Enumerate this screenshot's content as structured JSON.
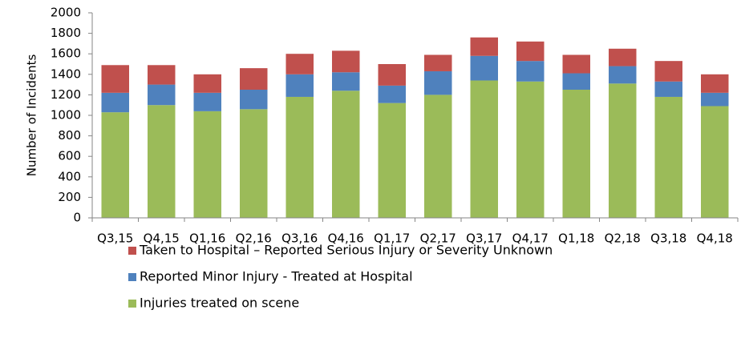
{
  "chart_data": {
    "type": "stacked_bar",
    "y_axis_label": "Number of Incidents",
    "categories": [
      "Q3,15",
      "Q4,15",
      "Q1,16",
      "Q2,16",
      "Q3,16",
      "Q4,16",
      "Q1,17",
      "Q2,17",
      "Q3,17",
      "Q4,17",
      "Q1,18",
      "Q2,18",
      "Q3,18",
      "Q4,18"
    ],
    "series": [
      {
        "name": "Injuries treated on scene",
        "color": "#9bbb59",
        "values": [
          1030,
          1100,
          1040,
          1060,
          1180,
          1240,
          1120,
          1200,
          1340,
          1330,
          1250,
          1310,
          1180,
          1090
        ]
      },
      {
        "name": "Reported Minor Injury - Treated at Hospital",
        "color": "#4f81bd",
        "values": [
          190,
          200,
          180,
          190,
          220,
          180,
          170,
          230,
          240,
          200,
          160,
          170,
          150,
          130
        ]
      },
      {
        "name": "Taken to Hospital – Reported Serious Injury or Severity Unknown",
        "color": "#c0504d",
        "values": [
          270,
          190,
          180,
          210,
          200,
          210,
          210,
          160,
          180,
          190,
          180,
          170,
          200,
          180
        ]
      }
    ],
    "ylim": [
      0,
      2000
    ],
    "yticks": [
      0,
      200,
      400,
      600,
      800,
      1000,
      1200,
      1400,
      1600,
      1800,
      2000
    ],
    "grid": false,
    "legend_position": "bottom"
  }
}
